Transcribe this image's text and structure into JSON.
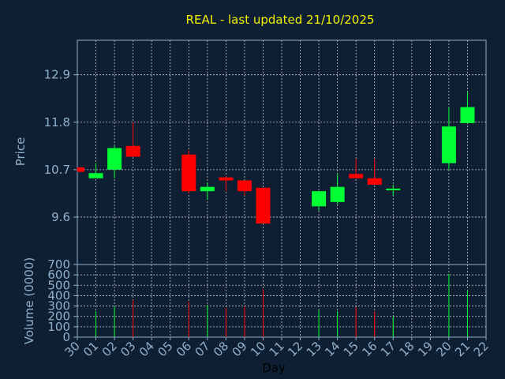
{
  "chart_data": {
    "type": "candlestick",
    "title": "REAL - last updated 21/10/2025",
    "xlabel": "Day",
    "price_panel": {
      "ylabel": "Price",
      "ylim": [
        8.5,
        13.7
      ],
      "yticks": [
        "9.6",
        "10.7",
        "11.8",
        "12.9"
      ],
      "grid": true
    },
    "volume_panel": {
      "ylabel": "Volume (0000)",
      "ylim": [
        0,
        700
      ],
      "yticks": [
        "0",
        "100",
        "200",
        "300",
        "400",
        "500",
        "600",
        "700"
      ],
      "grid": true
    },
    "categories": [
      "30",
      "01",
      "02",
      "03",
      "04",
      "05",
      "06",
      "07",
      "08",
      "09",
      "10",
      "11",
      "12",
      "13",
      "14",
      "15",
      "16",
      "17",
      "18",
      "19",
      "20",
      "21",
      "22"
    ],
    "candles": [
      {
        "day": "30",
        "open": 10.75,
        "close": 10.65,
        "high": 10.75,
        "low": 10.65,
        "volume": 0
      },
      {
        "day": "01",
        "open": 10.5,
        "close": 10.62,
        "high": 10.85,
        "low": 10.5,
        "volume": 250
      },
      {
        "day": "02",
        "open": 10.7,
        "close": 11.2,
        "high": 11.25,
        "low": 10.5,
        "volume": 300
      },
      {
        "day": "03",
        "open": 11.25,
        "close": 11.0,
        "high": 11.8,
        "low": 11.0,
        "volume": 360
      },
      {
        "day": "04",
        "volume": 0
      },
      {
        "day": "05",
        "volume": 0
      },
      {
        "day": "06",
        "open": 11.05,
        "close": 10.2,
        "high": 11.15,
        "low": 10.15,
        "volume": 340
      },
      {
        "day": "07",
        "open": 10.2,
        "close": 10.3,
        "high": 10.4,
        "low": 10.0,
        "volume": 310
      },
      {
        "day": "08",
        "open": 10.52,
        "close": 10.45,
        "high": 10.55,
        "low": 10.2,
        "volume": 280
      },
      {
        "day": "09",
        "open": 10.45,
        "close": 10.2,
        "high": 10.45,
        "low": 10.1,
        "volume": 300
      },
      {
        "day": "10",
        "open": 10.28,
        "close": 9.45,
        "high": 10.28,
        "low": 9.45,
        "volume": 460
      },
      {
        "day": "11",
        "volume": 0
      },
      {
        "day": "12",
        "volume": 0
      },
      {
        "day": "13",
        "open": 9.85,
        "close": 10.2,
        "high": 10.2,
        "low": 9.75,
        "volume": 260
      },
      {
        "day": "14",
        "open": 9.95,
        "close": 10.3,
        "high": 10.6,
        "low": 9.9,
        "volume": 250
      },
      {
        "day": "15",
        "open": 10.6,
        "close": 10.5,
        "high": 10.95,
        "low": 10.5,
        "volume": 290
      },
      {
        "day": "16",
        "open": 10.5,
        "close": 10.35,
        "high": 10.95,
        "low": 10.35,
        "volume": 250
      },
      {
        "day": "17",
        "open": 10.24,
        "close": 10.26,
        "high": 10.35,
        "low": 10.1,
        "volume": 200
      },
      {
        "day": "18",
        "volume": 0
      },
      {
        "day": "19",
        "volume": 0
      },
      {
        "day": "20",
        "open": 10.85,
        "close": 11.7,
        "high": 12.15,
        "low": 10.7,
        "volume": 610
      },
      {
        "day": "21",
        "open": 11.78,
        "close": 12.15,
        "high": 12.5,
        "low": 11.78,
        "volume": 450
      },
      {
        "day": "22",
        "volume": 0
      }
    ],
    "colors": {
      "up": "#00ff33",
      "down": "#ff0000",
      "background": "#0f1f33",
      "axis": "#8fb0cc",
      "title": "#f2f200"
    }
  }
}
